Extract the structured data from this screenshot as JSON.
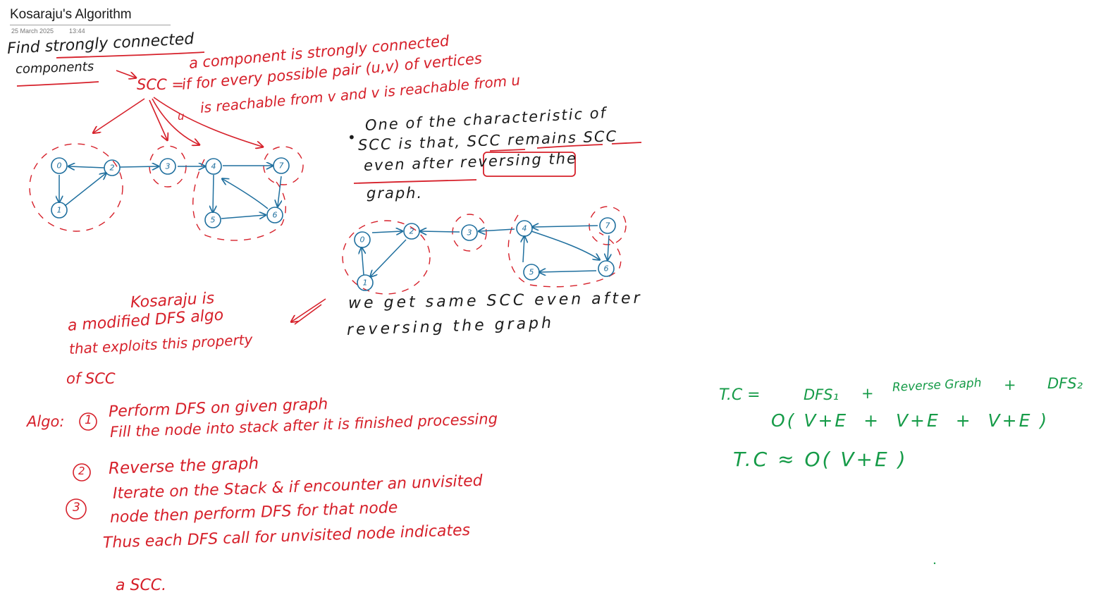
{
  "page": {
    "title": "Kosaraju's Algorithm",
    "date": "25 March 2025",
    "time": "13:44"
  },
  "notes": {
    "heading_line1": "Find strongly connected",
    "heading_line2": "components",
    "scc_label": "SCC =",
    "scc_def_line1": "a component is strongly connected",
    "scc_def_line2": "if for every possible pair (u,v) of vertices",
    "scc_def_line3_u": "u",
    "scc_def_line3": "is reachable from v and v is reachable from u",
    "property_line1": "One of the characteristic of",
    "property_line2": "SCC is that, SCC remains SCC",
    "property_line3": "even after reversing the",
    "property_line4": "graph.",
    "reversed_note_line1": "we get same SCC even after",
    "reversed_note_line2": "reversing the graph",
    "kosaraju_line1": "Kosaraju is",
    "kosaraju_line2": "a modified DFS algo",
    "kosaraju_line3": "that exploits this property",
    "kosaraju_line4": "of SCC",
    "algo_label": "Algo:",
    "step1_num": "1",
    "step1_line1": "Perform DFS on given graph",
    "step1_line2": "Fill the node into stack after it is finished processing",
    "step2_num": "2",
    "step2_line1": "Reverse the graph",
    "step3_num": "3",
    "step3_line1": "Iterate on the Stack & if encounter an unvisited",
    "step3_line2": "node then perform DFS for that node",
    "step3_line3": "Thus each DFS call for unvisited node indicates",
    "step3_line4": "a SCC.",
    "tc_line1_label": "T.C =",
    "tc_line1_dfs1": "DFS₁",
    "tc_line1_plus1": "+",
    "tc_line1_reverse": "Reverse Graph",
    "tc_line1_plus2": "+",
    "tc_line1_dfs2": "DFS₂",
    "tc_line2": "O( V+E  +  V+E  +  V+E )",
    "tc_line3": "T.C ≈ O( V+E )"
  },
  "graph_original": {
    "nodes": [
      "0",
      "2",
      "3",
      "4",
      "7",
      "1",
      "5",
      "6"
    ]
  },
  "graph_reversed": {
    "nodes": [
      "0",
      "2",
      "3",
      "4",
      "7",
      "1",
      "5",
      "6"
    ]
  },
  "colors": {
    "ink_black": "#1b1b1b",
    "ink_red": "#d6202a",
    "ink_green": "#169b48",
    "ink_blue": "#1f6f9e"
  }
}
